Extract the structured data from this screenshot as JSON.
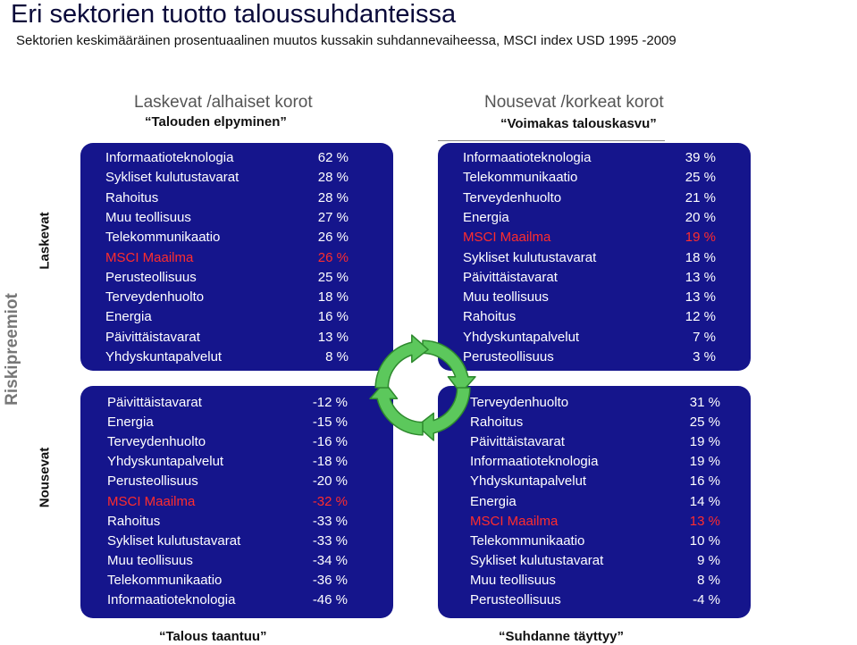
{
  "header": {
    "title": "Eri sektorien tuotto taloussuhdanteissa",
    "subtitle": "Sektorien keskimääräinen prosentuaalinen muutos kussakin suhdannevaiheessa, MSCI index USD 1995 -2009"
  },
  "columns": {
    "left": {
      "heading": "Laskevat /alhaiset korot",
      "phase": "“Talouden elpyminen”"
    },
    "right": {
      "heading": "Nousevat /korkeat korot",
      "phase": "“Voimakas talouskasvu”"
    }
  },
  "rows_axis": {
    "outer": "Riskipreemiot",
    "top": "Laskevat",
    "bottom": "Nousevat"
  },
  "bottom_labels": {
    "left": "“Talous taantuu”",
    "right": "“Suhdanne täyttyy”"
  },
  "colors": {
    "panel": "#15158c",
    "highlight": "#ff2d2d",
    "text": "#ffffff",
    "cycle_arrow": "#5cc85c"
  },
  "quadrants": {
    "top_left": [
      {
        "sector": "Informaatioteknologia",
        "value": "62 %"
      },
      {
        "sector": "Sykliset kulutustavarat",
        "value": "28 %"
      },
      {
        "sector": "Rahoitus",
        "value": "28 %"
      },
      {
        "sector": "Muu teollisuus",
        "value": "27 %"
      },
      {
        "sector": "Telekommunikaatio",
        "value": "26 %"
      },
      {
        "sector": "MSCI Maailma",
        "value": "26 %",
        "highlight": true
      },
      {
        "sector": "Perusteollisuus",
        "value": "25 %"
      },
      {
        "sector": "Terveydenhuolto",
        "value": "18 %"
      },
      {
        "sector": "Energia",
        "value": "16 %"
      },
      {
        "sector": "Päivittäistavarat",
        "value": "13 %"
      },
      {
        "sector": "Yhdyskuntapalvelut",
        "value": "8 %"
      }
    ],
    "top_right": [
      {
        "sector": "Informaatioteknologia",
        "value": "39 %"
      },
      {
        "sector": "Telekommunikaatio",
        "value": "25 %"
      },
      {
        "sector": "Terveydenhuolto",
        "value": "21 %"
      },
      {
        "sector": "Energia",
        "value": "20 %"
      },
      {
        "sector": "MSCI Maailma",
        "value": "19 %",
        "highlight": true
      },
      {
        "sector": "Sykliset kulutustavarat",
        "value": "18 %"
      },
      {
        "sector": "Päivittäistavarat",
        "value": "13 %"
      },
      {
        "sector": "Muu teollisuus",
        "value": "13 %"
      },
      {
        "sector": "Rahoitus",
        "value": "12 %"
      },
      {
        "sector": "Yhdyskuntapalvelut",
        "value": "7 %"
      },
      {
        "sector": "Perusteollisuus",
        "value": "3 %"
      }
    ],
    "bottom_left": [
      {
        "sector": "Päivittäistavarat",
        "value": "-12 %"
      },
      {
        "sector": "Energia",
        "value": "-15 %"
      },
      {
        "sector": "Terveydenhuolto",
        "value": "-16 %"
      },
      {
        "sector": "Yhdyskuntapalvelut",
        "value": "-18 %"
      },
      {
        "sector": "Perusteollisuus",
        "value": "-20 %"
      },
      {
        "sector": "MSCI Maailma",
        "value": "-32 %",
        "highlight": true
      },
      {
        "sector": "Rahoitus",
        "value": "-33 %"
      },
      {
        "sector": "Sykliset kulutustavarat",
        "value": "-33 %"
      },
      {
        "sector": "Muu teollisuus",
        "value": "-34 %"
      },
      {
        "sector": "Telekommunikaatio",
        "value": "-36 %"
      },
      {
        "sector": "Informaatioteknologia",
        "value": "-46 %"
      }
    ],
    "bottom_right": [
      {
        "sector": "Terveydenhuolto",
        "value": "31 %"
      },
      {
        "sector": "Rahoitus",
        "value": "25 %"
      },
      {
        "sector": "Päivittäistavarat",
        "value": "19 %"
      },
      {
        "sector": "Informaatioteknologia",
        "value": "19 %"
      },
      {
        "sector": "Yhdyskuntapalvelut",
        "value": "16 %"
      },
      {
        "sector": "Energia",
        "value": "14 %"
      },
      {
        "sector": "MSCI Maailma",
        "value": "13 %",
        "highlight": true
      },
      {
        "sector": "Telekommunikaatio",
        "value": "10 %"
      },
      {
        "sector": "Sykliset kulutustavarat",
        "value": "9 %"
      },
      {
        "sector": "Muu teollisuus",
        "value": "8 %"
      },
      {
        "sector": "Perusteollisuus",
        "value": "-4 %"
      }
    ]
  }
}
